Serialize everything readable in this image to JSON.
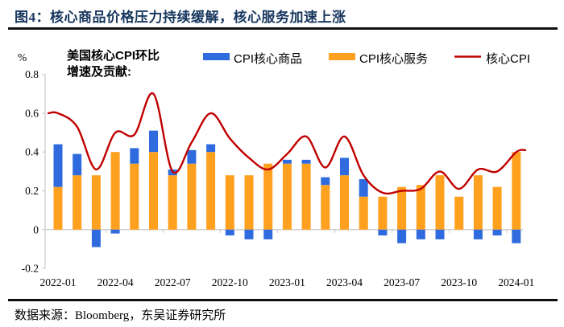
{
  "header": {
    "title": "图4：核心商品价格压力持续缓解，核心服务加速上涨"
  },
  "footer": {
    "source": "数据来源：Bloomberg，东吴证券研究所"
  },
  "chart_data": {
    "type": "combo",
    "note_line1": "美国核心CPI环比",
    "note_line2": "增速及贡献:",
    "ylabel": "%",
    "ylim": [
      -0.2,
      0.8
    ],
    "y_ticks": [
      "0.8",
      "0.6",
      "0.4",
      "0.2",
      "0",
      "-0.2"
    ],
    "grid": "off",
    "legend_position": "top",
    "categories": [
      "2022-01",
      "2022-02",
      "2022-03",
      "2022-04",
      "2022-05",
      "2022-06",
      "2022-07",
      "2022-08",
      "2022-09",
      "2022-10",
      "2022-11",
      "2022-12",
      "2023-01",
      "2023-02",
      "2023-03",
      "2023-04",
      "2023-05",
      "2023-06",
      "2023-07",
      "2023-08",
      "2023-09",
      "2023-10",
      "2023-11",
      "2023-12",
      "2024-01"
    ],
    "x_labeled_indices": [
      0,
      3,
      6,
      9,
      12,
      15,
      18,
      21,
      24
    ],
    "series": [
      {
        "name": "CPI核心商品",
        "type": "bar",
        "color": "#2F6BDF",
        "values": [
          0.22,
          0.11,
          -0.09,
          -0.02,
          0.08,
          0.11,
          0.03,
          0.07,
          0.04,
          -0.03,
          -0.05,
          -0.05,
          0.02,
          0.02,
          0.04,
          0.09,
          0.09,
          -0.03,
          -0.07,
          -0.05,
          -0.05,
          0.0,
          -0.05,
          -0.03,
          -0.07
        ]
      },
      {
        "name": "CPI核心服务",
        "type": "bar",
        "color": "#FFA01E",
        "values": [
          0.22,
          0.28,
          0.28,
          0.4,
          0.34,
          0.4,
          0.28,
          0.34,
          0.4,
          0.28,
          0.28,
          0.34,
          0.34,
          0.34,
          0.23,
          0.28,
          0.17,
          0.17,
          0.22,
          0.23,
          0.28,
          0.17,
          0.28,
          0.22,
          0.4
        ]
      },
      {
        "name": "核心CPI",
        "type": "line",
        "color": "#C00000",
        "values": [
          0.6,
          0.53,
          0.31,
          0.5,
          0.49,
          0.7,
          0.3,
          0.45,
          0.6,
          0.47,
          0.37,
          0.31,
          0.39,
          0.48,
          0.32,
          0.48,
          0.28,
          0.19,
          0.2,
          0.21,
          0.3,
          0.21,
          0.31,
          0.3,
          0.4
        ]
      }
    ]
  }
}
